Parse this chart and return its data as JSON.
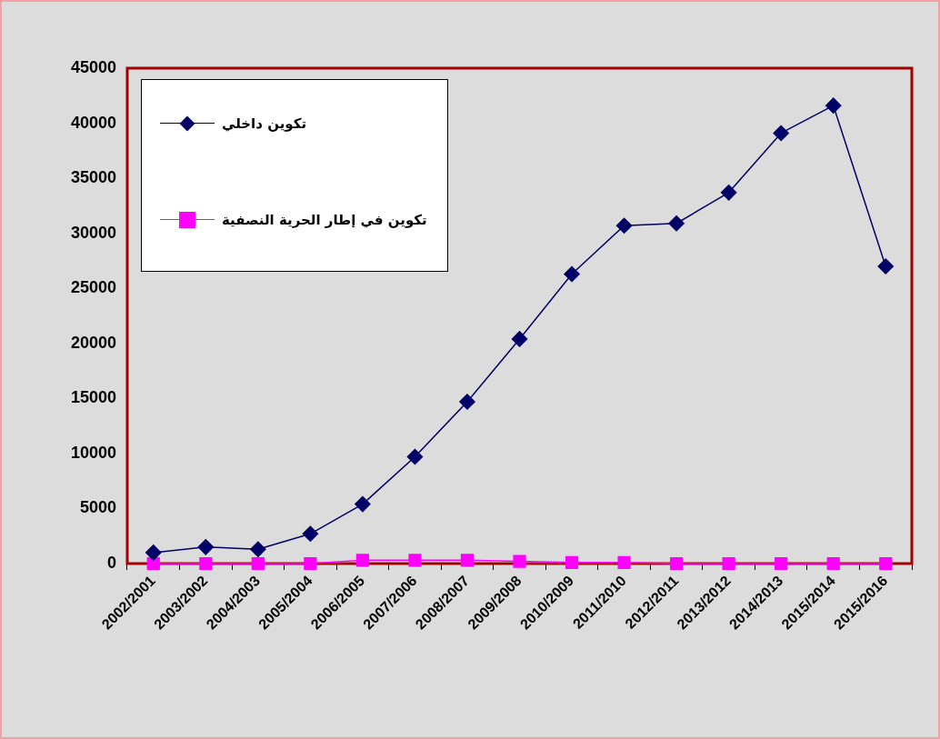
{
  "chart_data": {
    "type": "line",
    "categories": [
      "2002/2001",
      "2003/2002",
      "2004/2003",
      "2005/2004",
      "2006/2005",
      "2007/2006",
      "2008/2007",
      "2009/2008",
      "2010/2009",
      "2011/2010",
      "2012/2011",
      "2013/2012",
      "2014/2013",
      "2015/2014",
      "2015/2016"
    ],
    "series": [
      {
        "name": "تكوين داخلي",
        "color": "#000066",
        "marker": "diamond",
        "values": [
          1000,
          1500,
          1300,
          2700,
          5400,
          9700,
          14700,
          20400,
          26300,
          30700,
          30900,
          33700,
          39100,
          41600,
          27000
        ]
      },
      {
        "name": "تكوين في إطار  الحرية النصفية",
        "color": "#ff00ff",
        "marker": "square",
        "values": [
          0,
          0,
          0,
          0,
          300,
          300,
          300,
          200,
          100,
          100,
          0,
          0,
          0,
          0,
          0
        ]
      }
    ],
    "ylim": [
      0,
      45000
    ],
    "yticks": [
      0,
      5000,
      10000,
      15000,
      20000,
      25000,
      30000,
      35000,
      40000,
      45000
    ],
    "grid": false,
    "legend": "top left",
    "line_style": "solid"
  }
}
